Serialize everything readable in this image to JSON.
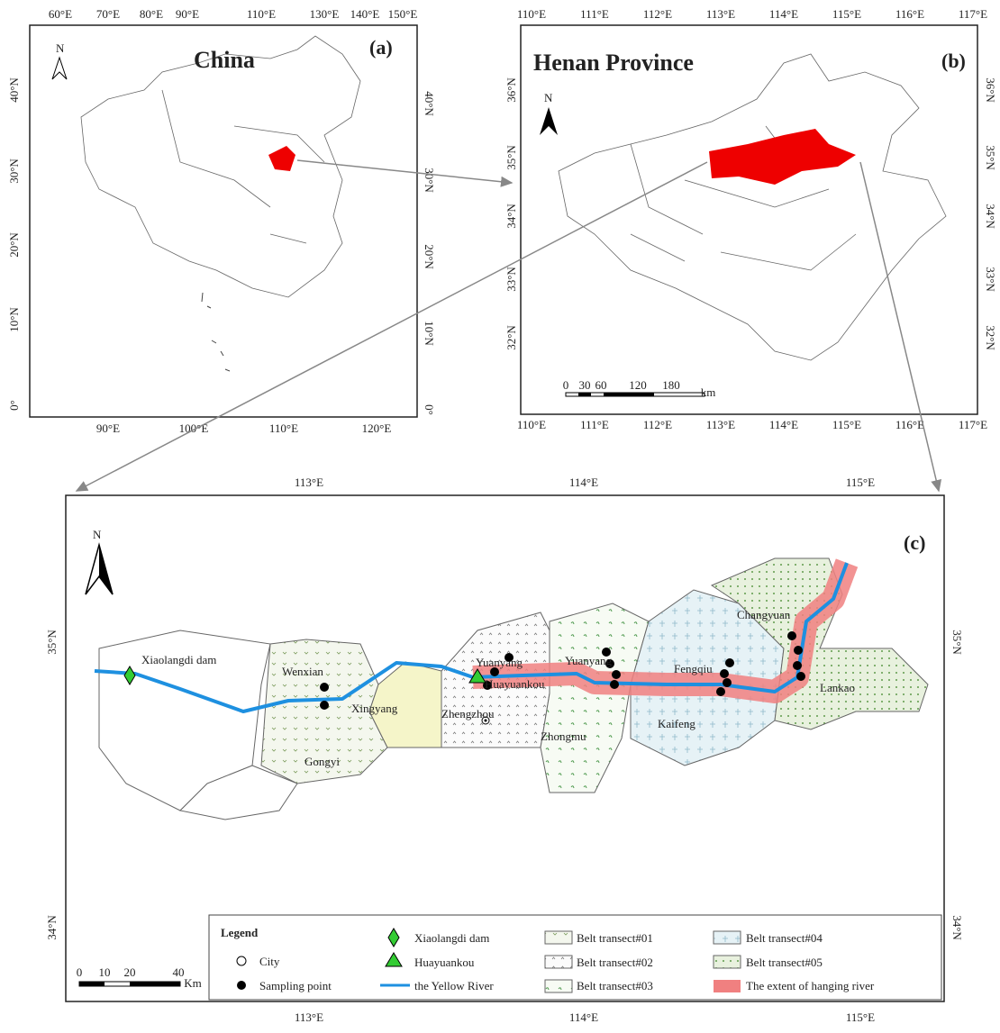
{
  "panel_a": {
    "title": "China",
    "label": "(a)",
    "north": "N",
    "top_ticks": [
      "60°E",
      "70°E",
      "80°E",
      "90°E",
      "110°E",
      "130°E",
      "140°E",
      "150°E"
    ],
    "bottom_ticks": [
      "90°E",
      "100°E",
      "110°E",
      "120°E"
    ],
    "left_ticks": [
      "40°N",
      "30°N",
      "20°N",
      "10°N",
      "0°"
    ],
    "right_ticks": [
      "40°N",
      "30°N",
      "20°N",
      "10°N",
      "0°"
    ]
  },
  "panel_b": {
    "title": "Henan Province",
    "label": "(b)",
    "north": "N",
    "top_ticks": [
      "110°E",
      "111°E",
      "112°E",
      "113°E",
      "114°E",
      "115°E",
      "116°E",
      "117°E"
    ],
    "bottom_ticks": [
      "110°E",
      "111°E",
      "112°E",
      "113°E",
      "114°E",
      "115°E",
      "116°E",
      "117°E"
    ],
    "left_ticks": [
      "36°N",
      "35°N",
      "34°N",
      "33°N",
      "32°N"
    ],
    "right_ticks": [
      "36°N",
      "35°N",
      "34°N",
      "33°N",
      "32°N"
    ],
    "scale": [
      "0",
      "30",
      "60",
      "120",
      "180",
      "km"
    ]
  },
  "panel_c": {
    "label": "(c)",
    "north": "N",
    "top_ticks": [
      "113°E",
      "114°E",
      "115°E"
    ],
    "bottom_ticks": [
      "113°E",
      "114°E",
      "115°E"
    ],
    "left_ticks": [
      "35°N",
      "34°N"
    ],
    "right_ticks": [
      "35°N",
      "34°N"
    ],
    "scale": [
      "0",
      "10",
      "20",
      "40",
      "Km"
    ],
    "places": [
      "Xiaolangdi dam",
      "Wenxian",
      "Xingyang",
      "Gongyi",
      "Zhengzhou",
      "Yuanyang",
      "Huayuankou",
      "Yuanyang",
      "Fengqiu",
      "Zhongmu",
      "Kaifeng",
      "Changyuan",
      "Lankao"
    ],
    "legend": {
      "title": "Legend",
      "items": [
        "City",
        "Sampling point",
        "Xiaolangdi dam",
        "Huayuankou",
        "the Yellow River",
        "Belt transect#01",
        "Belt transect#02",
        "Belt transect#03",
        "Belt transect#04",
        "Belt transect#05",
        "The extent of hanging river"
      ]
    }
  }
}
